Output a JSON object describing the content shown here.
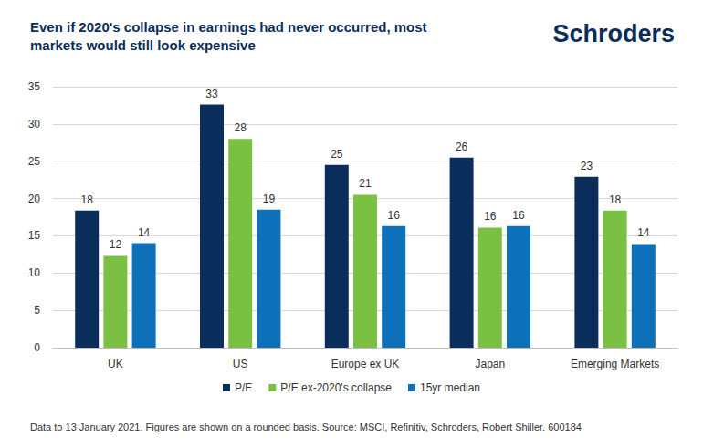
{
  "chart_data": {
    "type": "bar",
    "title": "Even if 2020's collapse in earnings had never occurred, most markets would still look expensive",
    "brand": "Schroders",
    "source": "Data to 13 January 2021. Figures are shown on a rounded basis. Source: MSCI, Refinitiv, Schroders, Robert Shiller. 600184",
    "categories": [
      "UK",
      "US",
      "Europe ex UK",
      "Japan",
      "Emerging Markets"
    ],
    "series": [
      {
        "name": "P/E",
        "color": "#0b2d5b",
        "values": [
          18.4,
          32.6,
          24.5,
          25.5,
          22.9
        ],
        "value_labels": [
          "18",
          "33",
          "25",
          "26",
          "23"
        ]
      },
      {
        "name": "P/E ex-2020's collapse",
        "color": "#7ac143",
        "values": [
          12.3,
          28.0,
          20.5,
          16.1,
          18.4
        ],
        "value_labels": [
          "12",
          "28",
          "21",
          "16",
          "18"
        ]
      },
      {
        "name": "15yr median",
        "color": "#0e70b8",
        "values": [
          14.0,
          18.5,
          16.3,
          16.3,
          13.9
        ],
        "value_labels": [
          "14",
          "19",
          "16",
          "16",
          "14"
        ]
      }
    ],
    "ylim": [
      0,
      35
    ],
    "yticks": [
      0,
      5,
      10,
      15,
      20,
      25,
      30,
      35
    ],
    "grid": true,
    "legend": "bottom",
    "data_labels": true
  }
}
